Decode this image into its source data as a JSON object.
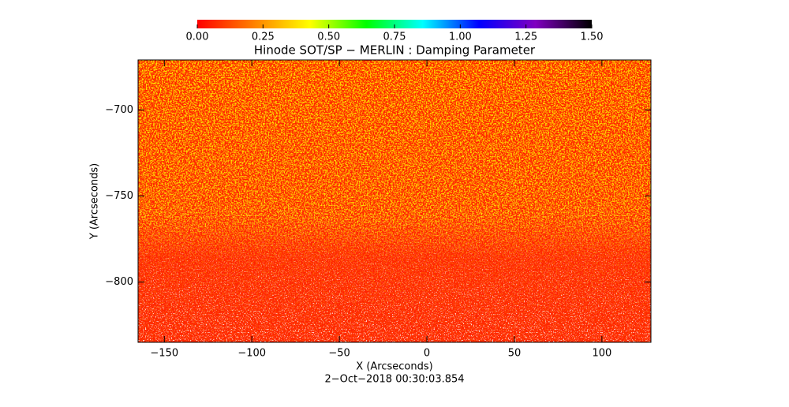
{
  "chart_data": {
    "type": "heatmap",
    "title": "Hinode SOT/SP − MERLIN : Damping Parameter",
    "x_label": "X (Arcseconds)",
    "y_label": "Y (Arcseconds)",
    "footer": "2−Oct−2018 00:30:03.854",
    "xlim": [
      -165,
      128
    ],
    "ylim": [
      -835,
      -671
    ],
    "xticks": [
      {
        "value": -150,
        "label": "−150"
      },
      {
        "value": -100,
        "label": "−100"
      },
      {
        "value": -50,
        "label": "−50"
      },
      0,
      50,
      100
    ],
    "yticks": [
      {
        "value": -700,
        "label": "−700"
      },
      {
        "value": -750,
        "label": "−750"
      },
      {
        "value": -800,
        "label": "−800"
      }
    ],
    "colorbar": {
      "lim": [
        0,
        1.5
      ],
      "ticks": [
        {
          "value": 0,
          "label": "0.00"
        },
        {
          "value": 0.25,
          "label": "0.25"
        },
        {
          "value": 0.5,
          "label": "0.50"
        },
        {
          "value": 0.75,
          "label": "0.75"
        },
        {
          "value": 1,
          "label": "1.00"
        },
        {
          "value": 1.25,
          "label": "1.25"
        },
        {
          "value": 1.5,
          "label": "1.50"
        }
      ],
      "colors": [
        "#ff0000",
        "#ff8000",
        "#ffff00",
        "#00ff00",
        "#00ffff",
        "#0000ff",
        "#8000c0",
        "#000000"
      ]
    }
  }
}
